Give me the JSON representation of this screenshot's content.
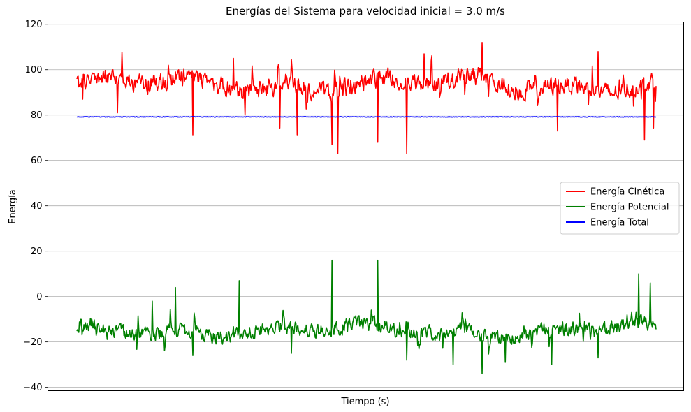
{
  "chart_data": {
    "type": "line",
    "title": "Energías del Sistema para velocidad inicial = 3.0 m/s",
    "xlabel": "Tiempo (s)",
    "ylabel": "Energía",
    "ylim": [
      -41.5,
      121
    ],
    "yticks": [
      -40,
      -20,
      0,
      20,
      40,
      60,
      80,
      100,
      120
    ],
    "ytick_labels": [
      "−40",
      "−20",
      "0",
      "20",
      "40",
      "60",
      "80",
      "100",
      "120"
    ],
    "xticks": [],
    "grid": "y",
    "legend_position": "center-right",
    "series": [
      {
        "name": "Energía Cinética",
        "color": "#ff0000",
        "style": "noisy",
        "mean": 93.5,
        "noise": 5.5,
        "peaks": [
          [
            0.01,
            87
          ],
          [
            0.07,
            81
          ],
          [
            0.17,
            99
          ],
          [
            0.2,
            71
          ],
          [
            0.27,
            105
          ],
          [
            0.29,
            80
          ],
          [
            0.35,
            74
          ],
          [
            0.38,
            71
          ],
          [
            0.44,
            67
          ],
          [
            0.45,
            63
          ],
          [
            0.52,
            68
          ],
          [
            0.57,
            63
          ],
          [
            0.6,
            107
          ],
          [
            0.7,
            112
          ],
          [
            0.83,
            73
          ],
          [
            0.9,
            108
          ],
          [
            0.98,
            69
          ],
          [
            0.995,
            74
          ]
        ],
        "values": [
          90,
          95,
          88,
          97,
          92,
          91,
          96,
          93,
          89,
          94
        ]
      },
      {
        "name": "Energía Potencial",
        "color": "#008000",
        "style": "noisy",
        "mean": -15,
        "noise": 4.5,
        "peaks": [
          [
            0.13,
            -2
          ],
          [
            0.17,
            4
          ],
          [
            0.2,
            -26
          ],
          [
            0.28,
            7
          ],
          [
            0.37,
            -25
          ],
          [
            0.44,
            16
          ],
          [
            0.52,
            16
          ],
          [
            0.57,
            -28
          ],
          [
            0.65,
            -30
          ],
          [
            0.7,
            -34
          ],
          [
            0.74,
            -29
          ],
          [
            0.82,
            -30
          ],
          [
            0.9,
            -27
          ],
          [
            0.97,
            10
          ],
          [
            0.99,
            6
          ]
        ],
        "values": [
          -11,
          -15,
          -13,
          -18,
          -14,
          -16,
          -12,
          -17,
          -15,
          -14
        ]
      },
      {
        "name": "Energía Total",
        "color": "#0000ff",
        "style": "flat",
        "mean": 79.2,
        "noise": 0.25,
        "values": [
          79.2,
          79.1,
          79.3,
          79.2,
          79.2,
          79.1,
          79.3,
          79.2,
          79.2,
          79.2
        ]
      }
    ]
  }
}
